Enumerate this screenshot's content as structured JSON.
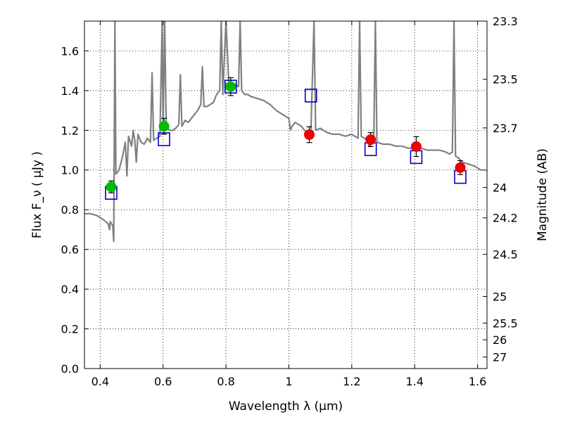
{
  "chart_data": {
    "type": "scatter",
    "title": "",
    "xlabel": "Wavelength  λ (μm)",
    "ylabel": "Flux  F_ν  ( μJy )",
    "ylabel_right": "Magnitude (AB)",
    "xlim": [
      0.35,
      1.63
    ],
    "ylim": [
      0.0,
      1.75
    ],
    "grid": true,
    "x_ticks": [
      0.4,
      0.6,
      0.8,
      1.0,
      1.2,
      1.4,
      1.6
    ],
    "x_tick_labels": [
      "0.4",
      "0.6",
      "0.8",
      "1",
      "1.2",
      "1.4",
      "1.6"
    ],
    "y_ticks": [
      0.0,
      0.2,
      0.4,
      0.6,
      0.8,
      1.0,
      1.2,
      1.4,
      1.6
    ],
    "y_tick_labels": [
      "0.0",
      "0.2",
      "0.4",
      "0.6",
      "0.8",
      "1.0",
      "1.2",
      "1.4",
      "1.6"
    ],
    "right_ticks": [
      {
        "label": "23.3",
        "flux": 1.75
      },
      {
        "label": "23.5",
        "flux": 1.457
      },
      {
        "label": "23.7",
        "flux": 1.212
      },
      {
        "label": "24",
        "flux": 0.912
      },
      {
        "label": "24.2",
        "flux": 0.759
      },
      {
        "label": "24.5",
        "flux": 0.575
      },
      {
        "label": "25",
        "flux": 0.363
      },
      {
        "label": "25.5",
        "flux": 0.229
      },
      {
        "label": "26",
        "flux": 0.145
      },
      {
        "label": "27",
        "flux": 0.058
      }
    ],
    "series": [
      {
        "kind": "spectrum-line",
        "color": "#808080",
        "points": [
          [
            0.35,
            0.78
          ],
          [
            0.37,
            0.78
          ],
          [
            0.39,
            0.77
          ],
          [
            0.41,
            0.75
          ],
          [
            0.425,
            0.73
          ],
          [
            0.43,
            0.7
          ],
          [
            0.432,
            0.74
          ],
          [
            0.44,
            0.72
          ],
          [
            0.443,
            0.64
          ],
          [
            0.447,
            1.75
          ],
          [
            0.45,
            0.98
          ],
          [
            0.46,
            1.0
          ],
          [
            0.47,
            1.06
          ],
          [
            0.48,
            1.14
          ],
          [
            0.485,
            0.97
          ],
          [
            0.49,
            1.17
          ],
          [
            0.5,
            1.12
          ],
          [
            0.505,
            1.2
          ],
          [
            0.51,
            1.15
          ],
          [
            0.515,
            1.04
          ],
          [
            0.52,
            1.18
          ],
          [
            0.53,
            1.14
          ],
          [
            0.54,
            1.13
          ],
          [
            0.55,
            1.16
          ],
          [
            0.56,
            1.14
          ],
          [
            0.565,
            1.49
          ],
          [
            0.57,
            1.15
          ],
          [
            0.58,
            1.16
          ],
          [
            0.59,
            1.17
          ],
          [
            0.597,
            1.75
          ],
          [
            0.6,
            1.2
          ],
          [
            0.605,
            1.75
          ],
          [
            0.61,
            1.22
          ],
          [
            0.62,
            1.2
          ],
          [
            0.63,
            1.2
          ],
          [
            0.64,
            1.21
          ],
          [
            0.65,
            1.23
          ],
          [
            0.655,
            1.48
          ],
          [
            0.66,
            1.22
          ],
          [
            0.67,
            1.25
          ],
          [
            0.68,
            1.24
          ],
          [
            0.69,
            1.26
          ],
          [
            0.7,
            1.28
          ],
          [
            0.71,
            1.3
          ],
          [
            0.72,
            1.33
          ],
          [
            0.725,
            1.52
          ],
          [
            0.73,
            1.32
          ],
          [
            0.74,
            1.32
          ],
          [
            0.75,
            1.33
          ],
          [
            0.76,
            1.34
          ],
          [
            0.77,
            1.38
          ],
          [
            0.78,
            1.4
          ],
          [
            0.785,
            1.75
          ],
          [
            0.79,
            1.38
          ],
          [
            0.8,
            1.75
          ],
          [
            0.81,
            1.4
          ],
          [
            0.82,
            1.4
          ],
          [
            0.83,
            1.43
          ],
          [
            0.84,
            1.42
          ],
          [
            0.845,
            1.75
          ],
          [
            0.85,
            1.4
          ],
          [
            0.86,
            1.38
          ],
          [
            0.87,
            1.38
          ],
          [
            0.88,
            1.37
          ],
          [
            0.9,
            1.36
          ],
          [
            0.92,
            1.35
          ],
          [
            0.94,
            1.33
          ],
          [
            0.96,
            1.3
          ],
          [
            0.98,
            1.28
          ],
          [
            1.0,
            1.26
          ],
          [
            1.005,
            1.2
          ],
          [
            1.01,
            1.22
          ],
          [
            1.02,
            1.24
          ],
          [
            1.03,
            1.23
          ],
          [
            1.04,
            1.22
          ],
          [
            1.05,
            1.2
          ],
          [
            1.06,
            1.19
          ],
          [
            1.07,
            1.2
          ],
          [
            1.08,
            1.75
          ],
          [
            1.085,
            1.2
          ],
          [
            1.1,
            1.21
          ],
          [
            1.12,
            1.19
          ],
          [
            1.14,
            1.18
          ],
          [
            1.16,
            1.18
          ],
          [
            1.18,
            1.17
          ],
          [
            1.2,
            1.18
          ],
          [
            1.22,
            1.16
          ],
          [
            1.225,
            1.75
          ],
          [
            1.23,
            1.17
          ],
          [
            1.24,
            1.16
          ],
          [
            1.25,
            1.15
          ],
          [
            1.255,
            1.12
          ],
          [
            1.26,
            1.14
          ],
          [
            1.27,
            1.15
          ],
          [
            1.275,
            1.75
          ],
          [
            1.28,
            1.14
          ],
          [
            1.3,
            1.13
          ],
          [
            1.32,
            1.13
          ],
          [
            1.34,
            1.12
          ],
          [
            1.36,
            1.12
          ],
          [
            1.38,
            1.11
          ],
          [
            1.4,
            1.11
          ],
          [
            1.42,
            1.11
          ],
          [
            1.44,
            1.1
          ],
          [
            1.46,
            1.1
          ],
          [
            1.48,
            1.1
          ],
          [
            1.5,
            1.09
          ],
          [
            1.51,
            1.08
          ],
          [
            1.52,
            1.09
          ],
          [
            1.525,
            1.75
          ],
          [
            1.53,
            1.07
          ],
          [
            1.54,
            1.06
          ],
          [
            1.55,
            1.04
          ],
          [
            1.57,
            1.03
          ],
          [
            1.59,
            1.02
          ],
          [
            1.61,
            1.0
          ],
          [
            1.63,
            1.0
          ]
        ]
      },
      {
        "kind": "model-boxes",
        "color": "#0000cc",
        "points": [
          [
            0.435,
            0.885
          ],
          [
            0.603,
            1.155
          ],
          [
            0.815,
            1.42
          ],
          [
            1.07,
            1.375
          ],
          [
            1.26,
            1.105
          ],
          [
            1.405,
            1.065
          ],
          [
            1.545,
            0.965
          ]
        ]
      },
      {
        "kind": "observed-points",
        "color": "#00bb00",
        "points": [
          [
            0.435,
            0.915,
            0.03
          ],
          [
            0.603,
            1.22,
            0.04
          ],
          [
            0.815,
            1.42,
            0.045
          ]
        ]
      },
      {
        "kind": "observed-points",
        "color": "#ee0000",
        "points": [
          [
            1.065,
            1.178,
            0.04
          ],
          [
            1.26,
            1.153,
            0.035
          ],
          [
            1.405,
            1.118,
            0.05
          ],
          [
            1.545,
            1.012,
            0.035
          ]
        ]
      }
    ]
  }
}
